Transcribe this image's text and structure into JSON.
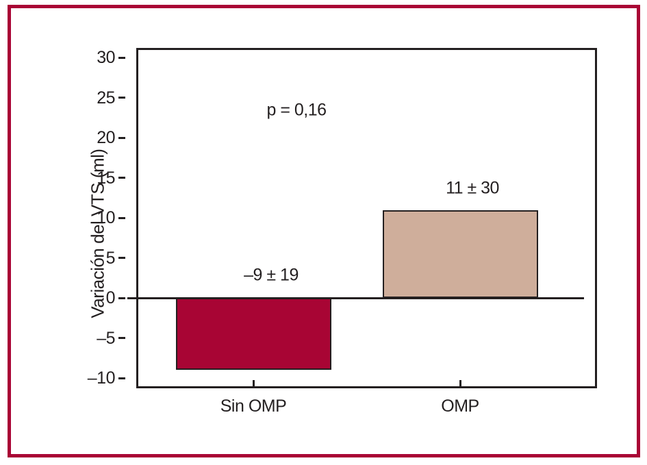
{
  "figure": {
    "border_color": "#a90435",
    "background": "#ffffff"
  },
  "chart_data": {
    "type": "bar",
    "title": "",
    "xlabel": "",
    "ylabel": "Variación del VTS (ml)",
    "categories": [
      "Sin OMP",
      "OMP"
    ],
    "values": [
      -9,
      11
    ],
    "errors": [
      19,
      30
    ],
    "value_labels": [
      "–9 ± 19",
      "11 ± 30"
    ],
    "annotation": "p = 0,16",
    "yticks": [
      30,
      25,
      20,
      15,
      10,
      5,
      0,
      -5,
      -10
    ],
    "ytick_labels": [
      "30",
      "25",
      "20",
      "15",
      "10",
      "5",
      "0",
      "–5",
      "–10"
    ],
    "ylim": [
      -10,
      32
    ],
    "bar_colors": [
      "#a80534",
      "#cfae9b"
    ],
    "axis_color": "#231f20",
    "grid": false,
    "legend": "none",
    "zero_line": true
  }
}
